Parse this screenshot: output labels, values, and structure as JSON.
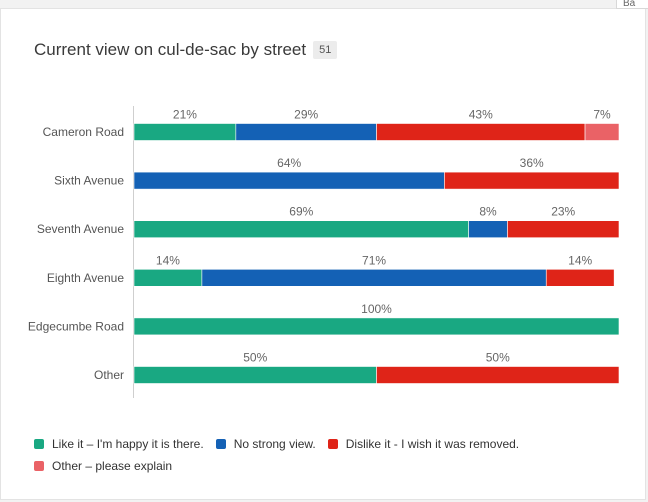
{
  "header": {
    "corner_tab_label": "Ba"
  },
  "card": {
    "title": "Current view on cul-de-sac by street",
    "count": "51"
  },
  "colors": {
    "like": "#19a882",
    "no_view": "#1461b5",
    "dislike": "#df2418",
    "other": "#ea6266"
  },
  "chart_data": {
    "type": "bar",
    "orientation": "horizontal",
    "stacked": true,
    "normalized_percent": true,
    "title": "Current view on cul-de-sac by street",
    "categories": [
      "Cameron Road",
      "Sixth Avenue",
      "Seventh Avenue",
      "Eighth Avenue",
      "Edgecumbe Road",
      "Other"
    ],
    "series": [
      {
        "name": "Like it – I'm happy it is there.",
        "color": "#19a882",
        "values": [
          21,
          0,
          69,
          14,
          100,
          50
        ]
      },
      {
        "name": "No strong view.",
        "color": "#1461b5",
        "values": [
          29,
          64,
          8,
          71,
          0,
          0
        ]
      },
      {
        "name": "Dislike it - I wish it was removed.",
        "color": "#df2418",
        "values": [
          43,
          36,
          23,
          14,
          0,
          50
        ]
      },
      {
        "name": "Other – please explain",
        "color": "#ea6266",
        "values": [
          7,
          0,
          0,
          0,
          0,
          0
        ]
      }
    ],
    "value_labels": [
      [
        "21%",
        "29%",
        "43%",
        "7%"
      ],
      [
        "",
        "64%",
        "36%",
        ""
      ],
      [
        "69%",
        "8%",
        "23%",
        ""
      ],
      [
        "14%",
        "71%",
        "14%",
        ""
      ],
      [
        "100%",
        "",
        "",
        ""
      ],
      [
        "50%",
        "",
        "50%",
        ""
      ]
    ],
    "xlim": [
      0,
      100
    ],
    "legend_position": "bottom",
    "grid": false
  },
  "legend": {
    "rows": [
      [
        {
          "label": "Like it – I'm happy it is there.",
          "color": "#19a882"
        },
        {
          "label": "No strong view.",
          "color": "#1461b5"
        },
        {
          "label": "Dislike it - I wish it was removed.",
          "color": "#df2418"
        }
      ],
      [
        {
          "label": "Other – please explain",
          "color": "#ea6266"
        }
      ]
    ]
  }
}
